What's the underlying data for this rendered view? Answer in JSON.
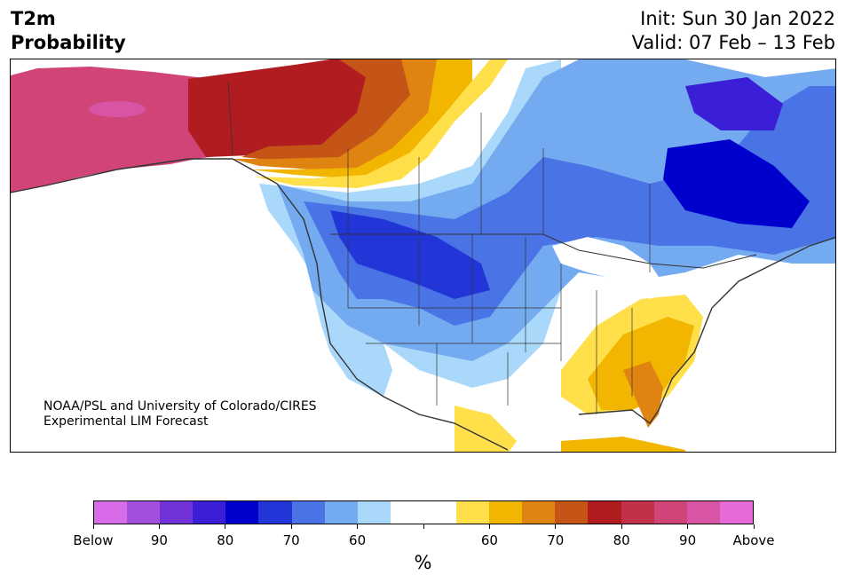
{
  "header": {
    "title_line1": "T2m",
    "title_line2": "Probability",
    "init_text": "Init: Sun 30 Jan 2022",
    "valid_text": "Valid: 07 Feb – 13 Feb"
  },
  "credit": {
    "line1": "NOAA/PSL and University of Colorado/CIRES",
    "line2": "Experimental LIM Forecast"
  },
  "colorbar": {
    "unit_label": "%",
    "tick_labels": [
      "Below",
      "90",
      "80",
      "70",
      "60",
      "",
      "60",
      "70",
      "80",
      "90",
      "Above"
    ],
    "colors": [
      "#d86be8",
      "#a24fe0",
      "#7133d8",
      "#3a1fd6",
      "#0000cc",
      "#2236d8",
      "#4a74e6",
      "#74aaf0",
      "#aad8fb",
      "#ffffff",
      "#ffffff",
      "#ffe04a",
      "#f2b500",
      "#df8410",
      "#c45516",
      "#b01c20",
      "#c2304a",
      "#d04478",
      "#d855a6",
      "#e66bd6"
    ]
  },
  "map": {
    "region": "North America",
    "colors": {
      "alaska": "#d04478",
      "alaska_core": "#d855a6",
      "deep_red": "#b01c20",
      "red": "#c45516",
      "orange": "#df8410",
      "gold": "#f2b500",
      "yellow": "#ffe04a",
      "light_blue": "#aad8fb",
      "sky_blue": "#74aaf0",
      "medium_blue": "#4a74e6",
      "blue": "#2236d8",
      "dark_blue": "#0000cc",
      "indigo": "#3a1fd6",
      "border": "#333333"
    }
  }
}
